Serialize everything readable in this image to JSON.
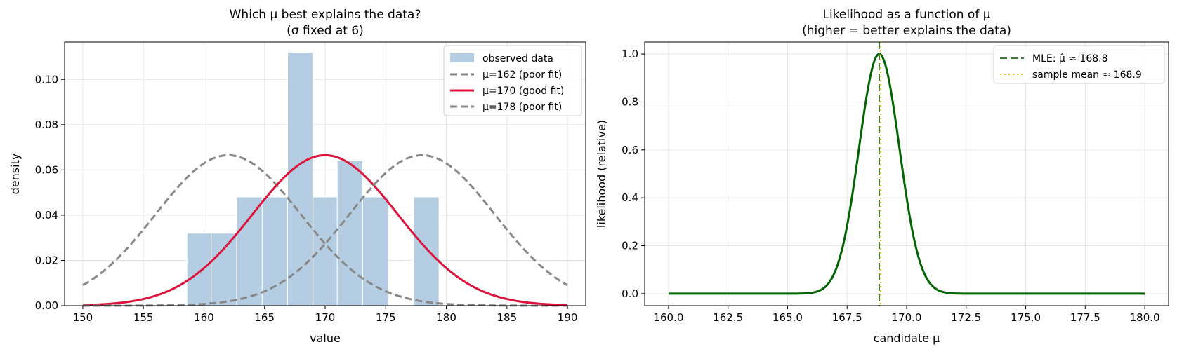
{
  "chart_data": [
    {
      "type": "bar",
      "title": "Which μ best explains the data?",
      "subtitle": "(σ fixed at 6)",
      "xlabel": "value",
      "ylabel": "density",
      "xlim": [
        148.5,
        191.5
      ],
      "ylim": [
        0,
        0.1165
      ],
      "xticks": [
        150,
        155,
        160,
        165,
        170,
        175,
        180,
        185,
        190
      ],
      "xtick_labels": [
        "150",
        "155",
        "160",
        "165",
        "170",
        "175",
        "180",
        "185",
        "190"
      ],
      "yticks": [
        0,
        0.02,
        0.04,
        0.06,
        0.08,
        0.1
      ],
      "ytick_labels": [
        "0.00",
        "0.02",
        "0.04",
        "0.06",
        "0.08",
        "0.10"
      ],
      "grid": true,
      "legend_position": "top-right",
      "histogram": {
        "name": "observed data",
        "color": "#b5cde2",
        "bins": [
          {
            "x0": 158.6,
            "x1": 160.6,
            "value": 0.032
          },
          {
            "x0": 160.6,
            "x1": 162.7,
            "value": 0.032
          },
          {
            "x0": 162.7,
            "x1": 164.8,
            "value": 0.048
          },
          {
            "x0": 164.8,
            "x1": 166.9,
            "value": 0.048
          },
          {
            "x0": 166.9,
            "x1": 169.0,
            "value": 0.112
          },
          {
            "x0": 169.0,
            "x1": 171.0,
            "value": 0.048
          },
          {
            "x0": 171.0,
            "x1": 173.1,
            "value": 0.064
          },
          {
            "x0": 173.1,
            "x1": 175.2,
            "value": 0.048
          },
          {
            "x0": 175.2,
            "x1": 177.3,
            "value": 0
          },
          {
            "x0": 177.3,
            "x1": 179.4,
            "value": 0.048
          }
        ]
      },
      "sigma": 6,
      "x_range": [
        150,
        190
      ],
      "series": [
        {
          "name": "μ=162 (poor fit)",
          "mu": 162,
          "color": "#888888",
          "style": "dashed"
        },
        {
          "name": "μ=170 (good fit)",
          "mu": 170,
          "color": "#dc143c",
          "style": "solid"
        },
        {
          "name": "μ=178 (poor fit)",
          "mu": 178,
          "color": "#888888",
          "style": "dashed"
        }
      ]
    },
    {
      "type": "line",
      "title": "Likelihood as a function of μ",
      "subtitle": "(higher = better explains the data)",
      "xlabel": "candidate μ",
      "ylabel": "likelihood (relative)",
      "xlim": [
        159,
        181
      ],
      "ylim": [
        -0.05,
        1.05
      ],
      "xticks": [
        160,
        162.5,
        165,
        167.5,
        170,
        172.5,
        175,
        177.5,
        180
      ],
      "xtick_labels": [
        "160.0",
        "162.5",
        "165.0",
        "167.5",
        "170.0",
        "172.5",
        "175.0",
        "177.5",
        "180.0"
      ],
      "yticks": [
        0,
        0.2,
        0.4,
        0.6,
        0.8,
        1.0
      ],
      "ytick_labels": [
        "0.0",
        "0.2",
        "0.4",
        "0.6",
        "0.8",
        "1.0"
      ],
      "grid": true,
      "legend_position": "top-right",
      "curve": {
        "peak_mu": 168.85,
        "sd": 0.85,
        "x_range": [
          160,
          180
        ],
        "color": "#006400"
      },
      "reference_lines": [
        {
          "name": "MLE: μ̂ ≈ 168.8",
          "x": 168.85,
          "color": "#3a7d3a",
          "style": "dashed"
        },
        {
          "name": "sample mean ≈ 168.9",
          "x": 168.9,
          "color": "#f0c020",
          "style": "dotted"
        }
      ]
    }
  ]
}
